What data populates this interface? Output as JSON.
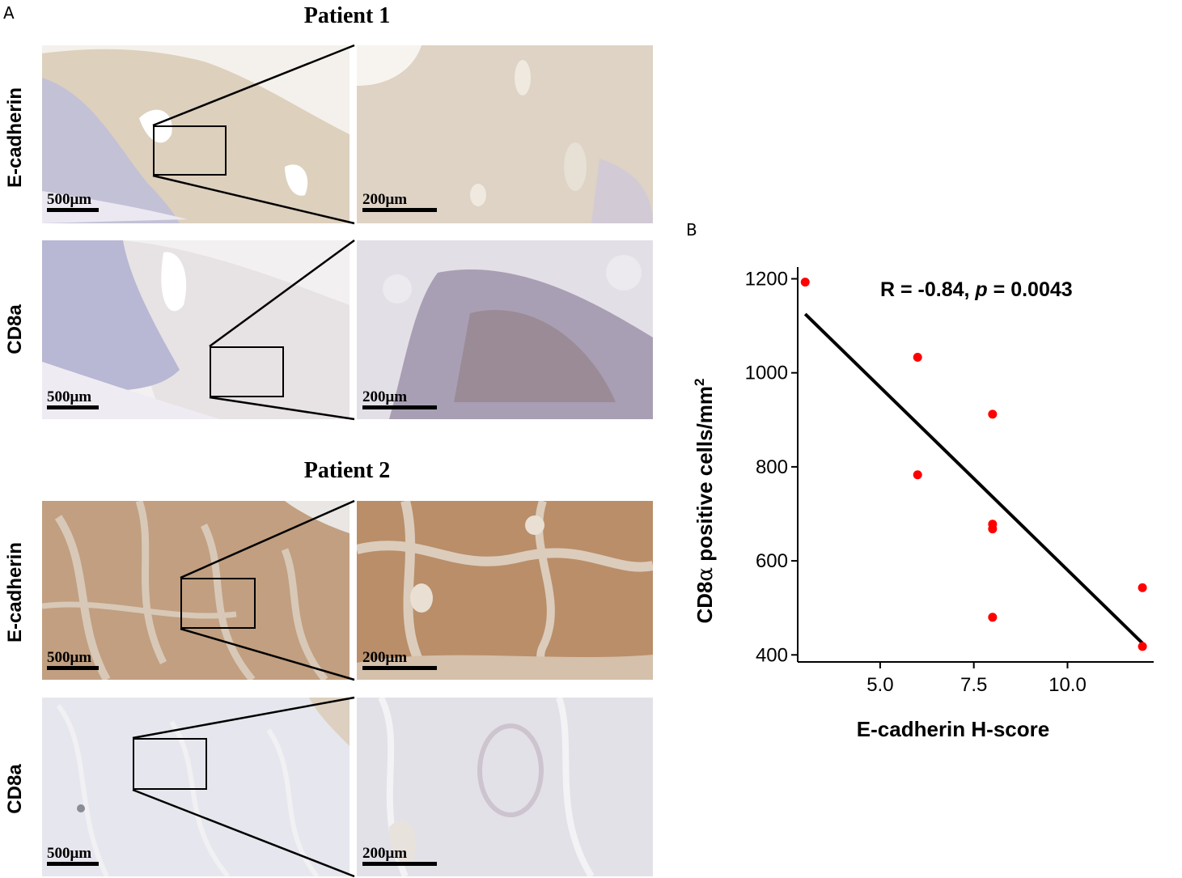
{
  "panel_a_label": "A",
  "panel_b_label": "B",
  "patients": [
    {
      "title": "Patient 1",
      "rows": [
        {
          "marker": "E-cadherin",
          "overview_scale": "500μm",
          "zoom_scale": "200μm",
          "stain": "ecad_light"
        },
        {
          "marker": "CD8a",
          "overview_scale": "500μm",
          "zoom_scale": "200μm",
          "stain": "cd8_dense"
        }
      ]
    },
    {
      "title": "Patient 2",
      "rows": [
        {
          "marker": "E-cadherin",
          "overview_scale": "500μm",
          "zoom_scale": "200μm",
          "stain": "ecad_strong"
        },
        {
          "marker": "CD8a",
          "overview_scale": "500μm",
          "zoom_scale": "200μm",
          "stain": "cd8_sparse"
        }
      ]
    }
  ],
  "colors": {
    "dab_light": "#d9cbb8",
    "dab_strong": "#b98f6a",
    "hematoxylin": "#aeb0d4",
    "point": "#ff0000",
    "line": "#000000"
  },
  "chart_data": {
    "type": "scatter",
    "xlabel": "E-cadherin H-score",
    "ylabel_main": "CD8",
    "ylabel_greek": "α",
    "ylabel_rest": " positive cells/mm",
    "ylabel_sup": "2",
    "xlim": [
      2.8,
      12.3
    ],
    "ylim": [
      385,
      1225
    ],
    "xticks": [
      5.0,
      7.5,
      10.0
    ],
    "xtick_labels": [
      "5.0",
      "7.5",
      "10.0"
    ],
    "yticks": [
      400,
      600,
      800,
      1000,
      1200
    ],
    "ytick_labels": [
      "400",
      "600",
      "800",
      "1000",
      "1200"
    ],
    "annotation": {
      "r_text": "R = -0.84, ",
      "p_symbol": "p",
      "p_text": " = 0.0043"
    },
    "points": [
      {
        "x": 3.0,
        "y": 1193
      },
      {
        "x": 6.0,
        "y": 1033
      },
      {
        "x": 6.0,
        "y": 783
      },
      {
        "x": 8.0,
        "y": 912
      },
      {
        "x": 8.0,
        "y": 678
      },
      {
        "x": 8.0,
        "y": 668
      },
      {
        "x": 8.0,
        "y": 480
      },
      {
        "x": 12.0,
        "y": 543
      },
      {
        "x": 12.0,
        "y": 418
      }
    ],
    "regression": {
      "x0": 3.0,
      "y0": 1125,
      "x1": 12.0,
      "y1": 425
    },
    "grid": false,
    "legend": "none"
  }
}
